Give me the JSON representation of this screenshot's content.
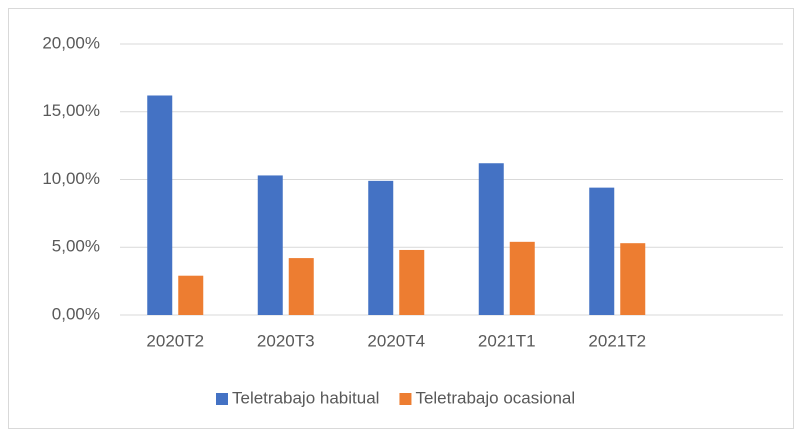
{
  "chart_data": {
    "type": "bar",
    "categories": [
      "2020T2",
      "2020T3",
      "2020T4",
      "2021T1",
      "2021T2",
      null
    ],
    "series": [
      {
        "name": "Teletrabajo habitual",
        "color": "#4472c4",
        "values": [
          16.2,
          10.3,
          9.9,
          11.2,
          9.4,
          null
        ]
      },
      {
        "name": "Teletrabajo ocasional",
        "color": "#ed7d31",
        "values": [
          2.9,
          4.2,
          4.8,
          5.4,
          5.3,
          null
        ]
      }
    ],
    "ylim": [
      0,
      20
    ],
    "yticks": [
      {
        "value": 0,
        "label": "0,00%"
      },
      {
        "value": 5,
        "label": "5,00%"
      },
      {
        "value": 10,
        "label": "10,00%"
      },
      {
        "value": 15,
        "label": "15,00%"
      },
      {
        "value": 20,
        "label": "20,00%"
      }
    ],
    "grid": true,
    "legend": "bottom"
  }
}
